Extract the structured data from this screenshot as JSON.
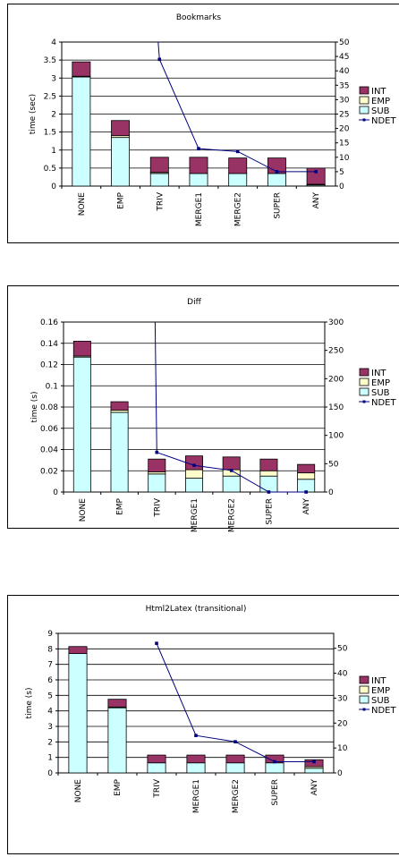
{
  "charts": [
    {
      "chart_data": {
        "type": "bar",
        "title": "Bookmarks",
        "ylabel": "time (sec)",
        "categories": [
          "NONE",
          "EMP",
          "TRIV",
          "MERGE1",
          "MERGE2",
          "SUPER",
          "ANY"
        ],
        "ylim": [
          0,
          4
        ],
        "yticks": [
          "0",
          "0.5",
          "1",
          "1.5",
          "2",
          "2.5",
          "3",
          "3.5",
          "4"
        ],
        "y2lim": [
          0,
          50
        ],
        "y2ticks": [
          "0",
          "5",
          "10",
          "15",
          "20",
          "25",
          "30",
          "35",
          "40",
          "45",
          "50"
        ],
        "series": [
          {
            "name": "SUB",
            "values": [
              3.03,
              1.35,
              0.35,
              0.35,
              0.35,
              0.35,
              0.03
            ]
          },
          {
            "name": "EMP",
            "values": [
              0.02,
              0.05,
              0.03,
              0.0,
              0.0,
              0.0,
              0.02
            ]
          },
          {
            "name": "INT",
            "values": [
              0.4,
              0.42,
              0.42,
              0.45,
              0.43,
              0.43,
              0.45
            ]
          }
        ],
        "line": {
          "name": "NDET",
          "values": [
            null,
            null,
            44,
            13,
            12,
            5,
            5
          ],
          "start_above": 52
        },
        "legend": [
          "INT",
          "EMP",
          "SUB",
          "NDET"
        ],
        "legend_position": "right"
      }
    },
    {
      "chart_data": {
        "type": "bar",
        "title": "Diff",
        "ylabel": "time (s)",
        "categories": [
          "NONE",
          "EMP",
          "TRIV",
          "MERGE1",
          "MERGE2",
          "SUPER",
          "ANY"
        ],
        "ylim": [
          0,
          0.16
        ],
        "yticks": [
          "0",
          "0.02",
          "0.04",
          "0.06",
          "0.08",
          "0.1",
          "0.12",
          "0.14",
          "0.16"
        ],
        "y2lim": [
          0,
          300
        ],
        "y2ticks": [
          "0",
          "50",
          "100",
          "150",
          "200",
          "250",
          "300"
        ],
        "series": [
          {
            "name": "SUB",
            "values": [
              0.127,
              0.075,
              0.017,
              0.013,
              0.015,
              0.015,
              0.012
            ]
          },
          {
            "name": "EMP",
            "values": [
              0.001,
              0.002,
              0.002,
              0.008,
              0.006,
              0.005,
              0.006
            ]
          },
          {
            "name": "INT",
            "values": [
              0.014,
              0.008,
              0.012,
              0.013,
              0.012,
              0.011,
              0.008
            ]
          }
        ],
        "line": {
          "name": "NDET",
          "values": [
            null,
            null,
            70,
            47,
            38,
            0,
            0
          ],
          "start_above": 310
        },
        "legend": [
          "INT",
          "EMP",
          "SUB",
          "NDET"
        ],
        "legend_position": "right"
      }
    },
    {
      "chart_data": {
        "type": "bar",
        "title": "Html2Latex (transitional)",
        "ylabel": "time (s)",
        "categories": [
          "NONE",
          "EMP",
          "TRIV",
          "MERGE1",
          "MERGE2",
          "SUPER",
          "ANY"
        ],
        "ylim": [
          0,
          9
        ],
        "yticks": [
          "0",
          "1",
          "2",
          "3",
          "4",
          "5",
          "6",
          "7",
          "8",
          "9"
        ],
        "y2lim": [
          0,
          56
        ],
        "y2ticks": [
          "0",
          "10",
          "20",
          "30",
          "40",
          "50"
        ],
        "series": [
          {
            "name": "SUB",
            "values": [
              7.7,
              4.2,
              0.65,
              0.65,
              0.65,
              0.65,
              0.3
            ]
          },
          {
            "name": "EMP",
            "values": [
              0.0,
              0.05,
              0.0,
              0.0,
              0.0,
              0.0,
              0.1
            ]
          },
          {
            "name": "INT",
            "values": [
              0.45,
              0.5,
              0.5,
              0.5,
              0.5,
              0.5,
              0.45
            ]
          }
        ],
        "line": {
          "name": "NDET",
          "values": [
            null,
            null,
            52,
            15,
            12.5,
            4.5,
            4.5
          ],
          "start_above": null
        },
        "legend": [
          "INT",
          "EMP",
          "SUB",
          "NDET"
        ],
        "legend_position": "right"
      }
    }
  ],
  "colors": {
    "SUB": "#ccffff",
    "EMP": "#ffffcc",
    "INT": "#993366",
    "NDET": "#000080"
  }
}
